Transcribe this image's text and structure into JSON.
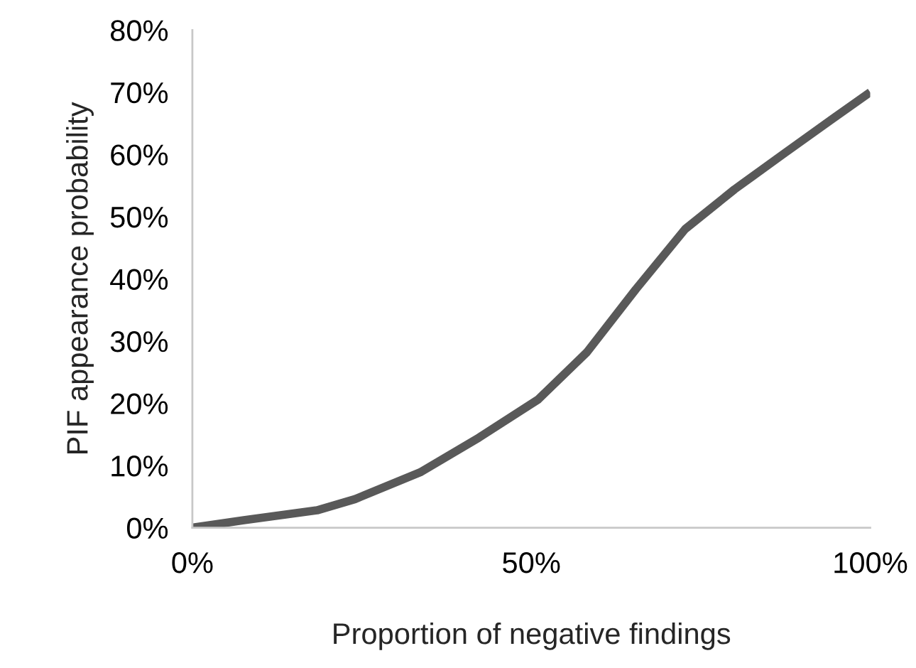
{
  "chart_data": {
    "type": "line",
    "xlabel": "Proportion of negative findings",
    "ylabel": "PIF appearance probability",
    "x": [
      0,
      7.6,
      18.4,
      24,
      33.6,
      42.3,
      51,
      58.2,
      65.4,
      72.7,
      80,
      87.1,
      94.4,
      100
    ],
    "series": [
      {
        "color": "#595959",
        "values": [
          0,
          1.2,
          2.8,
          4.6,
          8.9,
          14.5,
          20.6,
          28.2,
          38.3,
          48,
          54.4,
          60,
          65.7,
          70
        ]
      }
    ],
    "xlim": [
      0,
      100
    ],
    "ylim": [
      0,
      80
    ],
    "xticks": [
      {
        "value": 0,
        "label": "0%"
      },
      {
        "value": 50,
        "label": "50%"
      },
      {
        "value": 100,
        "label": "100%"
      }
    ],
    "yticks": [
      {
        "value": 0,
        "label": "0%"
      },
      {
        "value": 10,
        "label": "10%"
      },
      {
        "value": 20,
        "label": "20%"
      },
      {
        "value": 30,
        "label": "30%"
      },
      {
        "value": 40,
        "label": "40%"
      },
      {
        "value": 50,
        "label": "50%"
      },
      {
        "value": 60,
        "label": "60%"
      },
      {
        "value": 70,
        "label": "70%"
      },
      {
        "value": 80,
        "label": "80%"
      }
    ],
    "grid": false,
    "legend": false,
    "marker": "none",
    "line_style": "solid"
  }
}
